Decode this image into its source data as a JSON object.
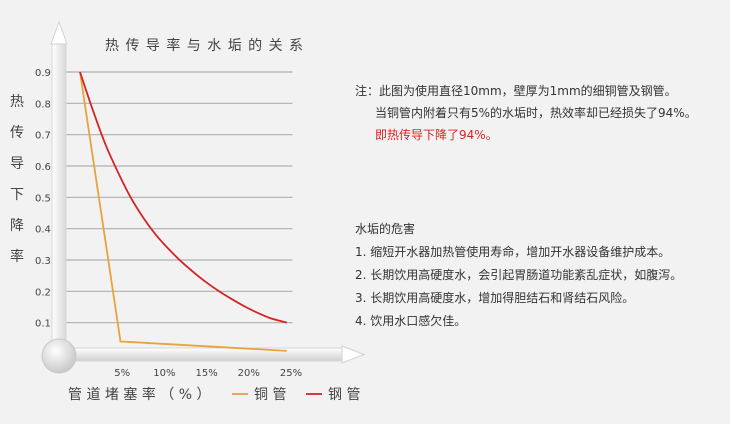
{
  "chart_data": {
    "type": "line",
    "title": "热 传 导 率 与 水 垢 的 关 系",
    "ylabel": "热传导下降率",
    "xlabel": "管 道 堵 塞 率 （ % ）",
    "ylim": [
      0,
      0.9
    ],
    "xlim": [
      0,
      25
    ],
    "yticks": [
      "0.1",
      "0.2",
      "0.3",
      "0.4",
      "0.5",
      "0.6",
      "0.7",
      "0.8",
      "0.9"
    ],
    "xticks": [
      "5%",
      "10%",
      "15%",
      "20%",
      "25%"
    ],
    "grid": true,
    "legend_position": "bottom",
    "series": [
      {
        "name": "铜 管",
        "color": "#e8a33a",
        "x": [
          0,
          4.8,
          24.5
        ],
        "y": [
          0.9,
          0.04,
          0.01
        ]
      },
      {
        "name": "钢 管",
        "color": "#d42424",
        "x": [
          0,
          1.5,
          3,
          4.5,
          6,
          7.5,
          9,
          10.5,
          12,
          13.5,
          15,
          16.5,
          18,
          19.5,
          21,
          22.5,
          24.5
        ],
        "y": [
          0.9,
          0.78,
          0.67,
          0.58,
          0.5,
          0.435,
          0.38,
          0.335,
          0.295,
          0.26,
          0.228,
          0.2,
          0.175,
          0.152,
          0.132,
          0.115,
          0.1
        ]
      }
    ]
  },
  "note": {
    "line1": "注：此图为使用直径10mm，壁厚为1mm的细铜管及钢管。",
    "line2": "当铜管内附着只有5%的水垢时，热效率却已经损失了94%。",
    "line3": "即热传导下降了94%。"
  },
  "hazards": {
    "title": "水垢的危害",
    "items": [
      "1. 缩短开水器加热管使用寿命，增加开水器设备维护成本。",
      "2. 长期饮用高硬度水，会引起胃肠道功能紊乱症状，如腹泻。",
      "3. 长期饮用高硬度水，增加得胆结石和肾结石风险。",
      "4. 饮用水口感欠佳。"
    ]
  }
}
